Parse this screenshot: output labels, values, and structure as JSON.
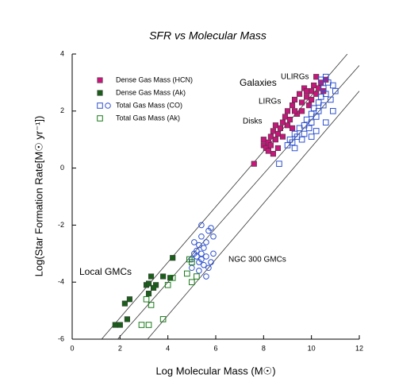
{
  "chart_data": {
    "type": "scatter",
    "title": "SFR vs Molecular Mass",
    "x_label": "Log Molecular Mass (M☉)",
    "y_label": "Log(Star Formation Rate[M☉ yr⁻¹])",
    "xlim": [
      0,
      12
    ],
    "ylim": [
      -6,
      4
    ],
    "xticks": [
      0,
      2,
      4,
      6,
      8,
      10,
      12
    ],
    "yticks": [
      -6,
      -4,
      -2,
      0,
      2,
      4
    ],
    "legend": "upper left",
    "annotations": [
      "Galaxies",
      "ULIRGs",
      "LIRGs",
      "Disks",
      "Local GMCs",
      "NGC 300 GMCs"
    ],
    "lines": [
      {
        "x": [
          1.23,
          11.5
        ],
        "y": [
          -6,
          4
        ]
      },
      {
        "x": [
          1.9,
          12
        ],
        "y": [
          -6,
          3.6
        ]
      },
      {
        "x": [
          3.15,
          12
        ],
        "y": [
          -6,
          2.7
        ]
      }
    ],
    "series": [
      {
        "name": "Dense Gas Mass (HCN)",
        "color": "#c4177a",
        "fill": true,
        "markers": "square",
        "x": [
          7.6,
          8.0,
          8.0,
          8.1,
          8.2,
          8.3,
          8.3,
          8.4,
          8.4,
          8.5,
          8.5,
          8.6,
          8.6,
          8.7,
          8.8,
          8.8,
          8.9,
          9.0,
          9.0,
          9.1,
          9.2,
          9.2,
          9.3,
          9.4,
          9.5,
          9.6,
          9.6,
          9.7,
          9.8,
          9.9,
          10.0,
          10.0,
          10.1,
          10.2,
          10.2,
          10.3,
          10.4,
          10.5,
          10.6,
          9.3,
          8.2,
          9.8
        ],
        "values": [
          0.15,
          0.8,
          1.0,
          0.7,
          0.9,
          1.1,
          0.8,
          1.3,
          0.5,
          1.0,
          1.5,
          1.2,
          0.7,
          1.4,
          1.6,
          1.1,
          1.8,
          1.5,
          2.0,
          1.7,
          2.2,
          1.4,
          2.4,
          1.9,
          2.6,
          2.3,
          2.0,
          2.8,
          2.5,
          2.2,
          2.7,
          2.4,
          2.9,
          2.6,
          3.2,
          2.8,
          3.0,
          2.7,
          3.1,
          2.0,
          0.6,
          2.7
        ]
      },
      {
        "name": "Dense Gas Mass (Ak)",
        "color": "#1b5e1b",
        "fill": true,
        "markers": "square",
        "x": [
          1.8,
          2.0,
          2.2,
          2.3,
          2.4,
          3.1,
          3.2,
          3.3,
          3.5,
          3.4,
          3.8,
          4.1,
          4.2,
          3.2
        ],
        "values": [
          -5.5,
          -5.5,
          -4.75,
          -5.3,
          -4.6,
          -4.1,
          -4.05,
          -3.8,
          -4.1,
          -4.2,
          -3.8,
          -3.85,
          -3.15,
          -4.4
        ]
      },
      {
        "name": "Total Gas Mass (CO)",
        "color": "#2f52d0",
        "fill": false,
        "markers": [
          "square",
          "square",
          "square",
          "square",
          "square",
          "square",
          "square",
          "square",
          "square",
          "square",
          "square",
          "square",
          "square",
          "square",
          "square",
          "square",
          "square",
          "square",
          "square",
          "square",
          "square",
          "square",
          "square",
          "square",
          "square",
          "square",
          "square",
          "square",
          "square",
          "square",
          "square",
          "square",
          "square",
          "circle",
          "circle",
          "circle",
          "circle",
          "circle",
          "circle",
          "circle",
          "circle",
          "circle",
          "circle",
          "circle",
          "circle",
          "circle",
          "circle",
          "circle",
          "circle",
          "circle",
          "circle",
          "circle",
          "circle",
          "circle",
          "circle",
          "circle",
          "circle"
        ],
        "x": [
          8.65,
          9.0,
          9.1,
          9.2,
          9.3,
          9.3,
          9.4,
          9.5,
          9.6,
          9.7,
          9.7,
          9.8,
          9.9,
          10.0,
          10.0,
          10.1,
          10.2,
          10.3,
          10.3,
          10.4,
          10.5,
          10.5,
          10.6,
          10.7,
          10.6,
          10.8,
          10.9,
          10.9,
          10.2,
          10.0,
          10.6,
          11.0,
          10.4,
          5.0,
          5.1,
          5.2,
          5.2,
          5.3,
          5.3,
          5.4,
          5.4,
          5.4,
          5.5,
          5.5,
          5.6,
          5.6,
          5.7,
          5.7,
          5.8,
          5.8,
          5.9,
          5.3,
          5.1,
          5.6,
          5.0,
          5.4,
          5.9
        ],
        "values": [
          0.15,
          0.8,
          1.0,
          0.9,
          1.2,
          0.7,
          1.1,
          1.4,
          1.0,
          1.5,
          1.2,
          1.7,
          1.4,
          1.9,
          1.6,
          2.1,
          1.8,
          2.3,
          2.0,
          2.5,
          2.2,
          2.8,
          2.6,
          3.0,
          3.2,
          2.4,
          2.0,
          2.9,
          1.3,
          1.1,
          1.6,
          2.7,
          3.1,
          -3.2,
          -3.0,
          -3.1,
          -2.9,
          -3.3,
          -2.7,
          -3.0,
          -2.4,
          -2.0,
          -3.4,
          -2.8,
          -3.1,
          -2.6,
          -2.2,
          -3.5,
          -3.3,
          -2.1,
          -2.4,
          -3.6,
          -2.6,
          -3.8,
          -3.5,
          -3.2,
          -3.0
        ]
      },
      {
        "name": "Total Gas Mass (Ak)",
        "color": "#1b7a1b",
        "fill": false,
        "markers": "square",
        "x": [
          2.9,
          3.2,
          3.1,
          3.3,
          3.8,
          4.0,
          4.2,
          4.8,
          4.9,
          5.0,
          5.2,
          5.0
        ],
        "values": [
          -5.5,
          -5.5,
          -4.6,
          -4.8,
          -5.3,
          -4.1,
          -3.85,
          -3.7,
          -3.2,
          -4.0,
          -3.8,
          -3.3
        ]
      }
    ]
  }
}
